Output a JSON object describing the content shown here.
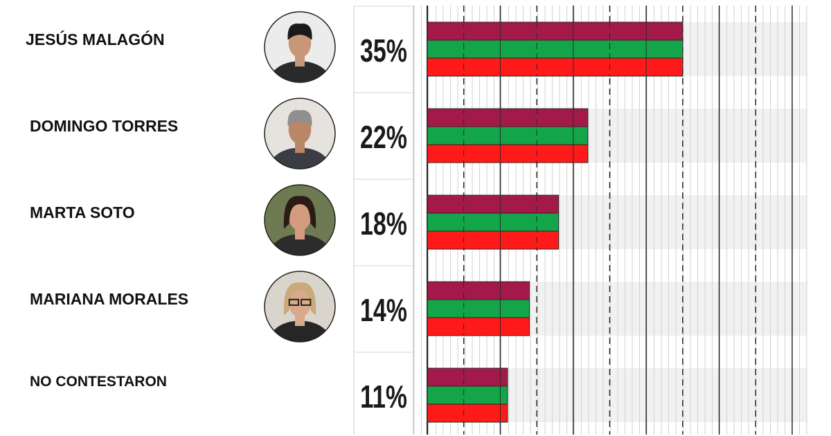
{
  "chart_data": {
    "type": "bar",
    "orientation": "horizontal",
    "categories": [
      "JESÚS MALAGÓN",
      "DOMINGO TORRES",
      "MARTA SOTO",
      "MARIANA MORALES",
      "NO CONTESTARON"
    ],
    "values": [
      35,
      22,
      18,
      14,
      11
    ],
    "value_labels": [
      "35%",
      "22%",
      "18%",
      "14%",
      "11%"
    ],
    "candidates_with_photo": [
      true,
      true,
      true,
      true,
      false
    ],
    "xlim": [
      0,
      52
    ],
    "grid": true,
    "bar_stripes": [
      "#a31a4a",
      "#12a54a",
      "#ff1a1a"
    ],
    "track_color": "#f1f1f1",
    "title": "",
    "xlabel": "",
    "ylabel": ""
  }
}
